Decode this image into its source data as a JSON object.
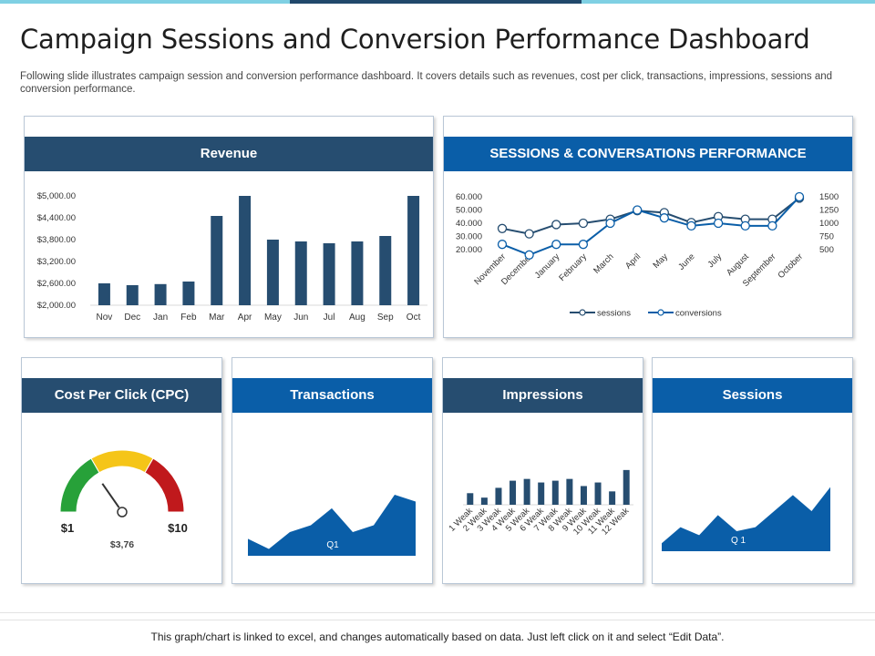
{
  "theme": {
    "dark": "#264d70",
    "blue": "#0a5ea8",
    "gauge_green": "#27a139",
    "gauge_yellow": "#f5c518",
    "gauge_red": "#c0191c"
  },
  "header": {
    "title": "Campaign Sessions and Conversion Performance Dashboard",
    "subtitle": "Following slide illustrates campaign session and conversion performance dashboard. It covers details such as revenues, cost per click, transactions, impressions, sessions and conversion performance."
  },
  "revenue": {
    "title": "Revenue"
  },
  "sessions_perf": {
    "title": "SESSIONS & CONVERSATIONS PERFORMANCE"
  },
  "cpc": {
    "title": "Cost Per Click (CPC)",
    "min_label": "$1",
    "max_label": "$10",
    "value_label": "$3,76"
  },
  "transactions": {
    "title": "Transactions",
    "label": "Q1"
  },
  "impressions": {
    "title": "Impressions"
  },
  "sessions": {
    "title": "Sessions",
    "label": "Q 1"
  },
  "footer": {
    "text": "This graph/chart is linked to excel, and changes automatically based on data. Just left click on it and select “Edit Data”."
  },
  "chart_data": [
    {
      "type": "bar",
      "title": "Revenue",
      "categories": [
        "Nov",
        "Dec",
        "Jan",
        "Feb",
        "Mar",
        "Apr",
        "May",
        "Jun",
        "Jul",
        "Aug",
        "Sep",
        "Oct"
      ],
      "values": [
        2600,
        2550,
        2580,
        2650,
        4450,
        5000,
        3800,
        3750,
        3700,
        3750,
        3900,
        5000
      ],
      "yticks": [
        "$2,000.00",
        "$2,600.00",
        "$3,200.00",
        "$3,800.00",
        "$4,400.00",
        "$5,000.00"
      ],
      "ylim": [
        2000,
        5000
      ]
    },
    {
      "type": "line",
      "title": "SESSIONS & CONVERSATIONS PERFORMANCE",
      "categories": [
        "November",
        "December",
        "January",
        "February",
        "March",
        "April",
        "May",
        "June",
        "July",
        "August",
        "September",
        "October"
      ],
      "series": [
        {
          "name": "sessions",
          "axis": "left",
          "values": [
            36000,
            32000,
            39000,
            40000,
            43000,
            49500,
            48000,
            40500,
            45000,
            43000,
            43000,
            59000
          ]
        },
        {
          "name": "conversions",
          "axis": "right",
          "values": [
            600,
            400,
            600,
            600,
            1000,
            1250,
            1100,
            950,
            1000,
            950,
            950,
            1500
          ]
        }
      ],
      "left_yticks": [
        "20.000",
        "30.000",
        "40.000",
        "50.000",
        "60.000"
      ],
      "left_ylim": [
        20000,
        60000
      ],
      "right_yticks": [
        "500",
        "750",
        "1000",
        "1250",
        "1500"
      ],
      "right_ylim": [
        500,
        1500
      ]
    },
    {
      "type": "gauge",
      "title": "Cost Per Click (CPC)",
      "min": 1,
      "max": 10,
      "value": 3.76
    },
    {
      "type": "area",
      "title": "Transactions",
      "values": [
        5,
        2,
        7,
        9,
        14,
        7,
        9,
        18,
        16
      ],
      "ylim": [
        0,
        25
      ],
      "xlabel": "Q1"
    },
    {
      "type": "bar",
      "title": "Impressions",
      "categories": [
        "1 Weak",
        "2 Weak",
        "3 Weak",
        "4 Weak",
        "5 Weak",
        "6 Weak",
        "7 Weak",
        "8 Weak",
        "9 Weak",
        "10 Weak",
        "11 Weak",
        "12 Weak"
      ],
      "values": [
        13,
        8,
        19,
        27,
        29,
        25,
        27,
        29,
        21,
        25,
        15,
        39
      ],
      "ylim": [
        0,
        45
      ]
    },
    {
      "type": "area",
      "title": "Sessions",
      "values": [
        2,
        6,
        4,
        9,
        5,
        6,
        10,
        14,
        10,
        16
      ],
      "ylim": [
        0,
        20
      ],
      "xlabel": "Q 1"
    }
  ]
}
